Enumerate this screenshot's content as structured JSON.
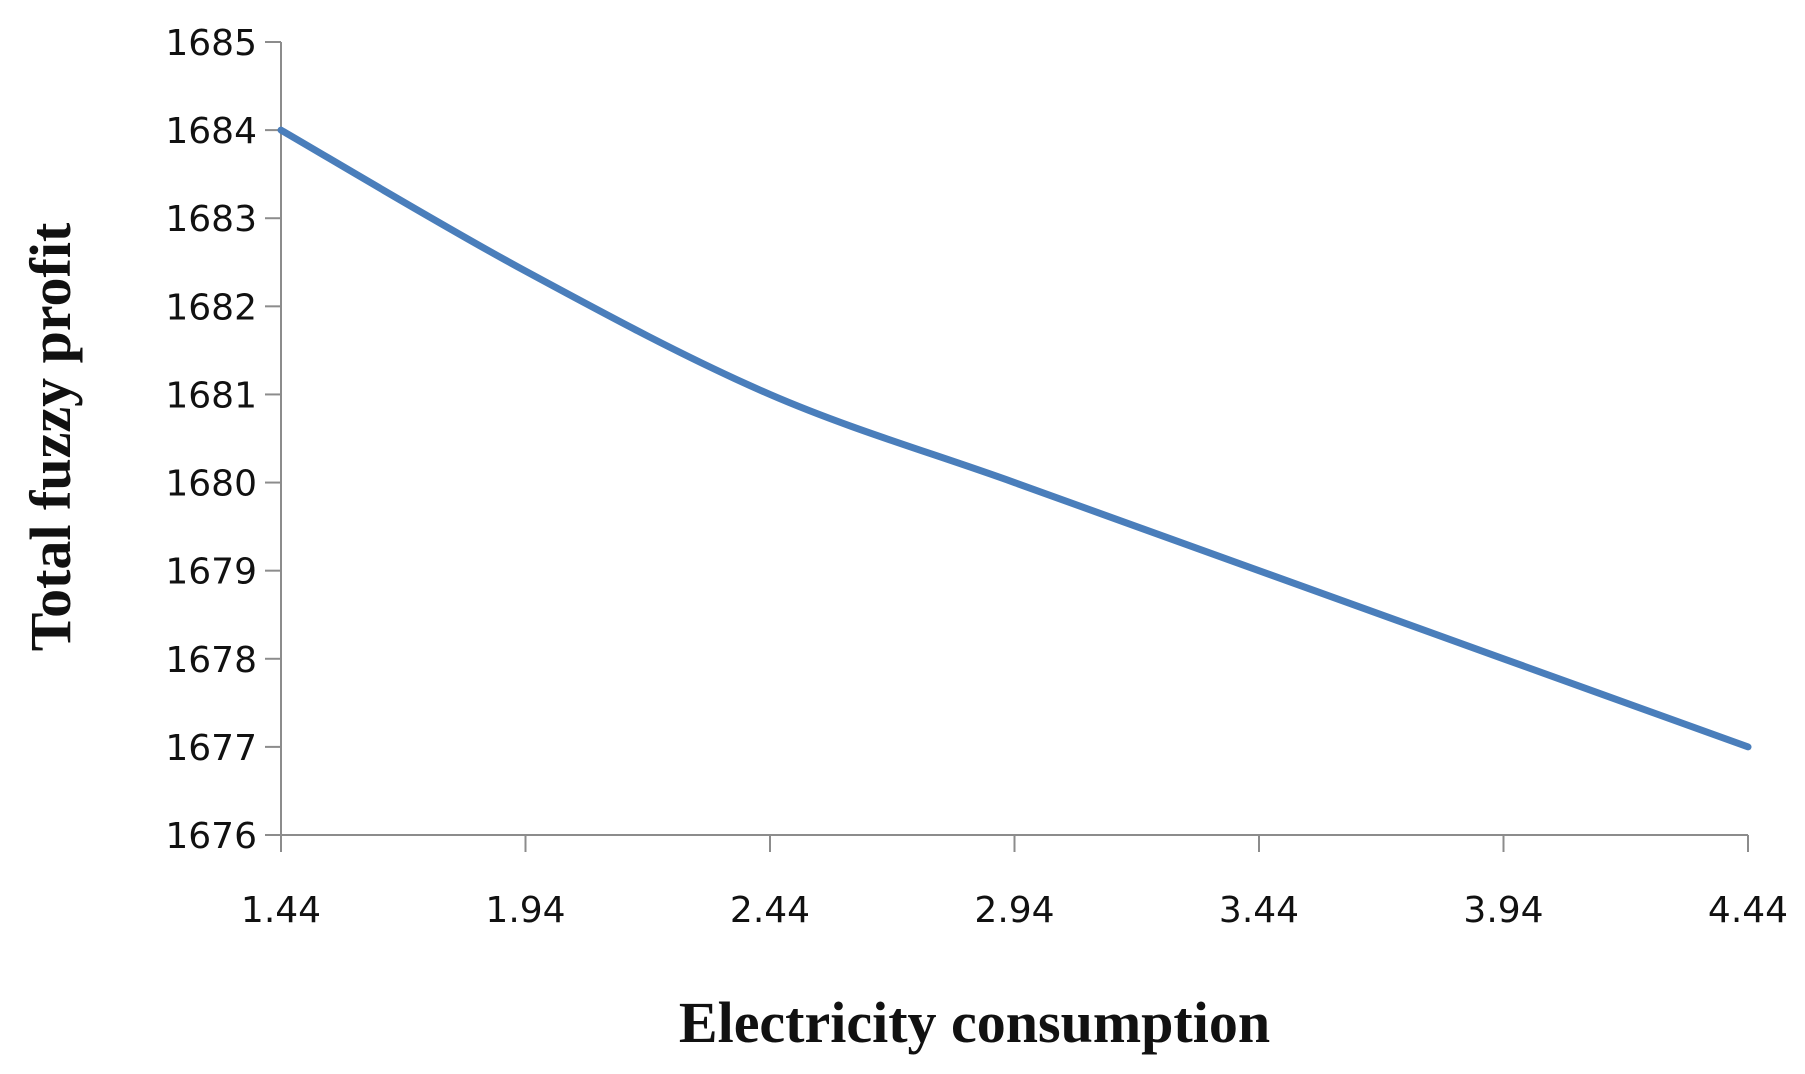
{
  "chart_data": {
    "type": "line",
    "title": "",
    "xlabel": "Electricity consumption",
    "ylabel": "Total fuzzy profit",
    "x": [
      1.44,
      1.94,
      2.44,
      2.94,
      3.44,
      3.94,
      4.44
    ],
    "x_tick_labels": [
      "1.44",
      "1.94",
      "2.44",
      "2.94",
      "3.44",
      "3.94",
      "4.44"
    ],
    "y_ticks": [
      1676,
      1677,
      1678,
      1679,
      1680,
      1681,
      1682,
      1683,
      1684,
      1685
    ],
    "y_tick_labels": [
      "1676",
      "1677",
      "1678",
      "1679",
      "1680",
      "1681",
      "1682",
      "1683",
      "1684",
      "1685"
    ],
    "xlim": [
      1.44,
      4.44
    ],
    "ylim": [
      1676,
      1685
    ],
    "grid": false,
    "legend": "none",
    "series": [
      {
        "name": "Total fuzzy profit",
        "color": "#4a7ebb",
        "values": [
          1684,
          1682.4,
          1681,
          1680,
          1679,
          1678,
          1677
        ]
      }
    ]
  }
}
